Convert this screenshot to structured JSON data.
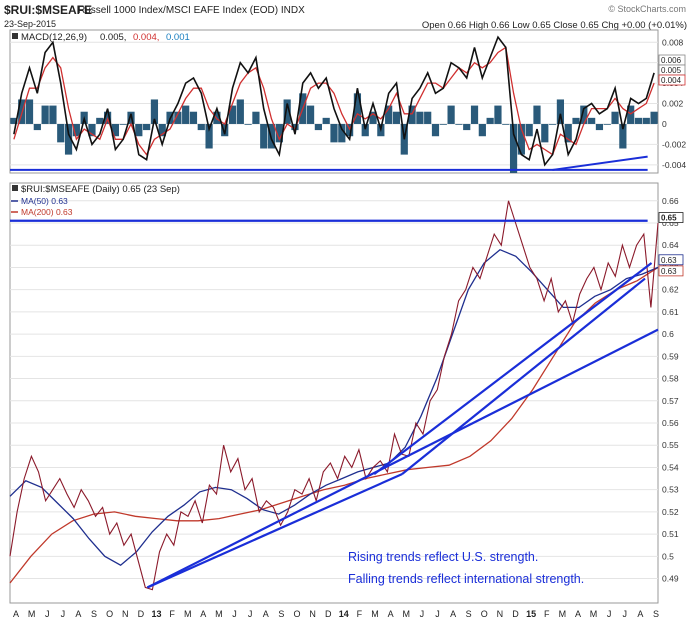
{
  "header": {
    "symbol": "$RUI:$MSEAFE",
    "name": "Russell 1000 Index/MSCI EAFE Index (EOD) INDX",
    "date": "23-Sep-2015",
    "ohlc": "Open 0.66  High 0.66  Low 0.65  Close 0.65  Chg +0.00 (+0.01%)",
    "watermark": "© StockCharts.com"
  },
  "colors": {
    "price": "#8b1a2b",
    "ma50": "#1f2f8f",
    "ma200": "#c0392b",
    "trendline": "#1a2ed8",
    "macd_line": "#111111",
    "macd_signal": "#d03030",
    "macd_hist": "#2a5a7a",
    "annotation": "#1a2ed8"
  },
  "chart_data": [
    {
      "type": "line",
      "panel": "macd",
      "legend_label": "MACD(12,26,9)",
      "legend_values": [
        "0.005,",
        "0.004,",
        "0.001"
      ],
      "yticks": [
        0.008,
        0.006,
        0.004,
        0.002,
        0.0,
        -0.002,
        -0.004
      ],
      "ylim": [
        -0.0048,
        0.0092
      ],
      "right_labels": [
        "0.006",
        "0.005",
        "0.004"
      ],
      "series": [
        {
          "values": [
            -0.001,
            0.003,
            0.0055,
            0.003,
            0.007,
            0.008,
            0.004,
            -0.001,
            -0.0025,
            0.0005,
            -0.002,
            -0.001,
            0.0015,
            -0.0025,
            -0.0015,
            0.001,
            -0.003,
            -0.0035,
            0.0005,
            -0.002,
            0.0005,
            0.002,
            0.004,
            0.0045,
            0.003,
            -0.0005,
            0.0015,
            -0.001,
            0.0035,
            0.006,
            0.005,
            0.0065,
            0.0015,
            -0.0015,
            -0.003,
            0.002,
            -0.001,
            0.004,
            0.005,
            0.0035,
            0.0045,
            0.0015,
            -0.0005,
            -0.0015,
            0.0035,
            -0.0005,
            0.002,
            -0.0005,
            0.003,
            0.004,
            -0.0015,
            0.0025,
            0.0035,
            0.005,
            0.003,
            0.0035,
            0.006,
            0.0055,
            0.0045,
            0.0075,
            0.0045,
            0.0065,
            0.0085,
            0.0075,
            -0.001,
            -0.003,
            -0.0035,
            -0.0005,
            -0.004,
            -0.003,
            0.001,
            -0.003,
            -0.0015,
            0.0015,
            0.002,
            0.001,
            0.0015,
            0.0035,
            -0.0005,
            0.0025,
            0.002,
            0.0025,
            0.005
          ]
        },
        {
          "values": [
            -0.0015,
            0.001,
            0.0035,
            0.0035,
            0.0055,
            0.0065,
            0.0055,
            0.0015,
            -0.0015,
            -0.0005,
            -0.001,
            -0.0015,
            0.0005,
            -0.0015,
            -0.0015,
            0.0,
            -0.002,
            -0.003,
            -0.0015,
            -0.001,
            -0.0005,
            0.001,
            0.0025,
            0.0035,
            0.0035,
            0.0015,
            0.0005,
            0.0,
            0.002,
            0.004,
            0.005,
            0.0055,
            0.0035,
            0.0005,
            -0.0015,
            0.0,
            -0.0005,
            0.0015,
            0.0035,
            0.004,
            0.004,
            0.003,
            0.001,
            -0.0005,
            0.001,
            0.0005,
            0.001,
            0.0005,
            0.0015,
            0.003,
            0.001,
            0.001,
            0.0025,
            0.004,
            0.004,
            0.0035,
            0.0045,
            0.0055,
            0.005,
            0.006,
            0.0055,
            0.006,
            0.007,
            0.0075,
            0.003,
            -0.0005,
            -0.0025,
            -0.002,
            -0.0025,
            -0.003,
            -0.001,
            -0.0015,
            -0.002,
            0.0,
            0.0015,
            0.0015,
            0.0015,
            0.0025,
            0.0015,
            0.001,
            0.0015,
            0.002,
            0.004
          ]
        }
      ],
      "trendlines": [
        {
          "x1": 0.0,
          "y1": -0.0045,
          "x2": 0.984,
          "y2": -0.0045
        },
        {
          "x1": 0.837,
          "y1": -0.0045,
          "x2": 0.984,
          "y2": -0.0032
        }
      ]
    },
    {
      "type": "line",
      "panel": "price",
      "legend_label": "$RUI:$MSEAFE (Daily) 0.65 (23 Sep)",
      "ma_labels": [
        "MA(50) 0.63",
        "MA(200) 0.63"
      ],
      "yticks": [
        0.66,
        0.65,
        0.64,
        0.63,
        0.62,
        0.61,
        0.6,
        0.59,
        0.58,
        0.57,
        0.56,
        0.55,
        0.54,
        0.53,
        0.52,
        0.51,
        0.5,
        0.49
      ],
      "ylim": [
        0.479,
        0.668
      ],
      "right_labels": [
        "0.65",
        "0.63",
        "0.63"
      ],
      "xticks": [
        "A",
        "M",
        "J",
        "J",
        "A",
        "S",
        "O",
        "N",
        "D",
        "13",
        "F",
        "M",
        "A",
        "M",
        "J",
        "J",
        "A",
        "S",
        "O",
        "N",
        "D",
        "14",
        "F",
        "M",
        "A",
        "M",
        "J",
        "J",
        "A",
        "S",
        "O",
        "N",
        "D",
        "15",
        "F",
        "M",
        "A",
        "M",
        "J",
        "J",
        "A",
        "S"
      ],
      "series": [
        {
          "name": "$RUI:$MSEAFE",
          "values": [
            0.5,
            0.52,
            0.535,
            0.545,
            0.538,
            0.525,
            0.53,
            0.535,
            0.528,
            0.522,
            0.53,
            0.525,
            0.518,
            0.522,
            0.51,
            0.515,
            0.505,
            0.51,
            0.498,
            0.486,
            0.485,
            0.502,
            0.51,
            0.505,
            0.52,
            0.518,
            0.525,
            0.515,
            0.532,
            0.528,
            0.55,
            0.538,
            0.544,
            0.53,
            0.535,
            0.52,
            0.525,
            0.522,
            0.514,
            0.52,
            0.53,
            0.528,
            0.535,
            0.525,
            0.538,
            0.542,
            0.535,
            0.545,
            0.54,
            0.548,
            0.535,
            0.54,
            0.543,
            0.538,
            0.555,
            0.546,
            0.545,
            0.56,
            0.555,
            0.57,
            0.575,
            0.59,
            0.6,
            0.615,
            0.62,
            0.63,
            0.625,
            0.635,
            0.645,
            0.64,
            0.66,
            0.65,
            0.64,
            0.63,
            0.625,
            0.615,
            0.625,
            0.61,
            0.615,
            0.605,
            0.618,
            0.625,
            0.63,
            0.62,
            0.632,
            0.626,
            0.64,
            0.63,
            0.64,
            0.645,
            0.612,
            0.65
          ]
        },
        {
          "name": "MA(50)",
          "values": [
            0.527,
            0.534,
            0.531,
            0.524,
            0.517,
            0.508,
            0.5,
            0.496,
            0.502,
            0.511,
            0.518,
            0.523,
            0.529,
            0.531,
            0.53,
            0.526,
            0.521,
            0.519,
            0.523,
            0.528,
            0.532,
            0.535,
            0.538,
            0.54,
            0.542,
            0.549,
            0.563,
            0.58,
            0.6,
            0.62,
            0.632,
            0.638,
            0.635,
            0.628,
            0.62,
            0.612,
            0.612,
            0.617,
            0.62,
            0.625,
            0.627,
            0.63
          ]
        },
        {
          "name": "MA(200)",
          "values": [
            0.488,
            0.5,
            0.51,
            0.516,
            0.519,
            0.52,
            0.518,
            0.517,
            0.516,
            0.516,
            0.517,
            0.519,
            0.521,
            0.524,
            0.527,
            0.53,
            0.532,
            0.535,
            0.537,
            0.539,
            0.54,
            0.541,
            0.545,
            0.552,
            0.562,
            0.575,
            0.59,
            0.605,
            0.614,
            0.62,
            0.624,
            0.63
          ]
        }
      ],
      "trendlines": [
        {
          "x1": 0.212,
          "y1": 0.486,
          "x2": 1.0,
          "y2": 0.602
        },
        {
          "x1": 0.212,
          "y1": 0.486,
          "x2": 0.605,
          "y2": 0.537
        },
        {
          "x1": 0.605,
          "y1": 0.537,
          "x2": 0.98,
          "y2": 0.625
        },
        {
          "x1": 0.562,
          "y1": 0.537,
          "x2": 0.99,
          "y2": 0.632
        },
        {
          "x1": 0.0,
          "y1": 0.651,
          "x2": 0.984,
          "y2": 0.651
        }
      ],
      "annotations": [
        "Rising trends reflect U.S. strength.",
        "Falling trends reflect international strength."
      ]
    }
  ]
}
